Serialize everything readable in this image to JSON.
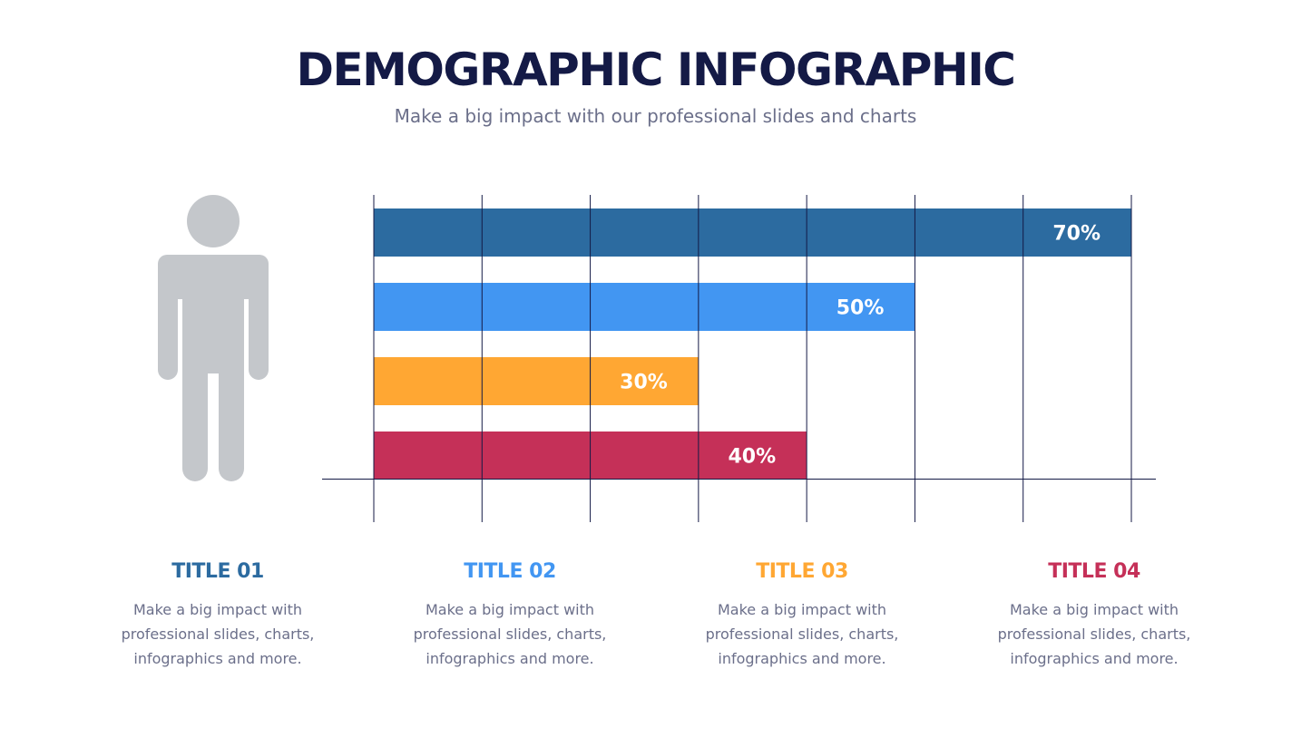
{
  "header": {
    "title": "DEMOGRAPHIC INFOGRAPHIC",
    "subtitle": "Make a big impact with our professional slides and charts"
  },
  "chart_data": {
    "type": "bar",
    "orientation": "horizontal",
    "categories": [
      "Title 01",
      "Title 02",
      "Title 03",
      "Title 04"
    ],
    "values": [
      70,
      50,
      30,
      40
    ],
    "labels": [
      "70%",
      "50%",
      "30%",
      "40%"
    ],
    "colors": [
      "#2C6BA0",
      "#4296F2",
      "#FFA733",
      "#C53058"
    ],
    "xlim": [
      0,
      70
    ],
    "grid_step": 10,
    "grid": true
  },
  "items": [
    {
      "title": "TITLE 01",
      "color": "#2C6BA0",
      "lines": [
        "Make a big impact with",
        "professional slides, charts,",
        "infographics and more."
      ]
    },
    {
      "title": "TITLE 02",
      "color": "#4296F2",
      "lines": [
        "Make a big impact with",
        "professional slides, charts,",
        "infographics and more."
      ]
    },
    {
      "title": "TITLE 03",
      "color": "#FFA733",
      "lines": [
        "Make a big impact with",
        "professional slides, charts,",
        "infographics and more."
      ]
    },
    {
      "title": "TITLE 04",
      "color": "#C53058",
      "lines": [
        "Make a big impact with",
        "professional slides, charts,",
        "infographics and more."
      ]
    }
  ]
}
